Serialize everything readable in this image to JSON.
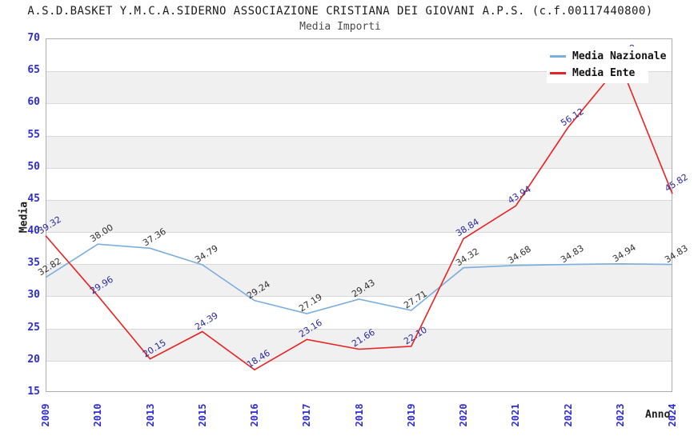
{
  "header": {
    "title": "A.S.D.BASKET Y.M.C.A.SIDERNO ASSOCIAZIONE CRISTIANA DEI GIOVANI A.P.S. (c.f.00117440800)",
    "subtitle": "Media Importi"
  },
  "legend": {
    "items": [
      {
        "label": "Media Nazionale",
        "color": "#7aaede"
      },
      {
        "label": "Media Ente",
        "color": "#e82222"
      }
    ]
  },
  "axes": {
    "y_title": "Media",
    "x_title": "Anno"
  },
  "colors": {
    "title": "#1b1b1b",
    "subtitle": "#4a4a4a",
    "tick_labels": "#2d2dd8",
    "band_gray": "#f0f0f0",
    "gridline": "#d9d9d9",
    "plot_border": "#adadad",
    "background": "#ffffff"
  },
  "chart_data": {
    "type": "line",
    "title": "Media Importi",
    "xlabel": "Anno",
    "ylabel": "Media",
    "ylim": [
      15,
      70
    ],
    "yticks": [
      15,
      20,
      25,
      30,
      35,
      40,
      45,
      50,
      55,
      60,
      65,
      70
    ],
    "grid": "horizontal gridlines every 5 with alternating gray/white bands",
    "legend_position": "top-right inside plot",
    "categories": [
      "2009",
      "2010",
      "2013",
      "2015",
      "2016",
      "2017",
      "2018",
      "2019",
      "2020",
      "2021",
      "2022",
      "2023",
      "2024"
    ],
    "series": [
      {
        "name": "Media Nazionale",
        "color": "#7aaede",
        "label_color": "#2e2e2e",
        "values": [
          32.82,
          38.0,
          37.36,
          34.79,
          29.24,
          27.19,
          29.43,
          27.71,
          34.32,
          34.68,
          34.83,
          34.94,
          34.83
        ]
      },
      {
        "name": "Media Ente",
        "color": "#e82222",
        "label_color": "#28289f",
        "values": [
          39.32,
          29.96,
          20.15,
          24.39,
          18.46,
          23.16,
          21.66,
          22.1,
          38.84,
          43.94,
          56.12,
          66.0,
          45.82
        ],
        "label_hidden_by_legend_index": 11
      }
    ]
  }
}
